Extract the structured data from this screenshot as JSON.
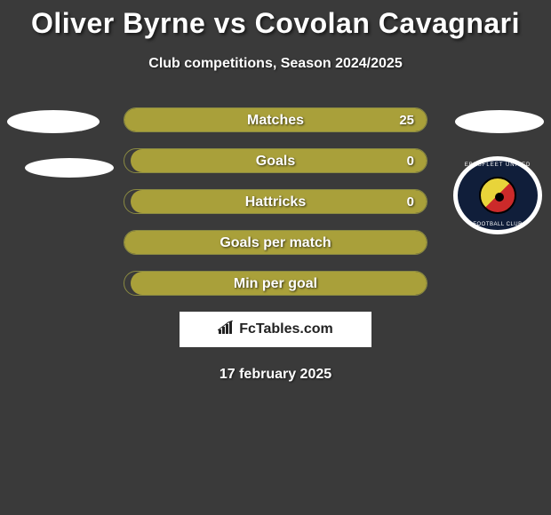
{
  "title": "Oliver Byrne vs Covolan Cavagnari",
  "subtitle": "Club competitions, Season 2024/2025",
  "date": "17 february 2025",
  "watermark_text": "FcTables.com",
  "colors": {
    "background": "#3a3a3a",
    "bar_fill": "#a9a03a",
    "bar_border": "#8a8a42",
    "title_color": "#ffffff",
    "text_color": "#ffffff"
  },
  "club_badge": {
    "top_text": "EBBSFLEET UNITED",
    "bottom_text": "FOOTBALL CLUB",
    "outer_bg": "#101e3a",
    "ring": "#ffffff",
    "inner_yellow": "#e8d43a",
    "inner_red": "#cc2a2a"
  },
  "bars": [
    {
      "label": "Matches",
      "value": "25",
      "fill_pct": 100
    },
    {
      "label": "Goals",
      "value": "0",
      "fill_pct": 98
    },
    {
      "label": "Hattricks",
      "value": "0",
      "fill_pct": 98
    },
    {
      "label": "Goals per match",
      "value": "",
      "fill_pct": 100
    },
    {
      "label": "Min per goal",
      "value": "",
      "fill_pct": 98
    }
  ]
}
